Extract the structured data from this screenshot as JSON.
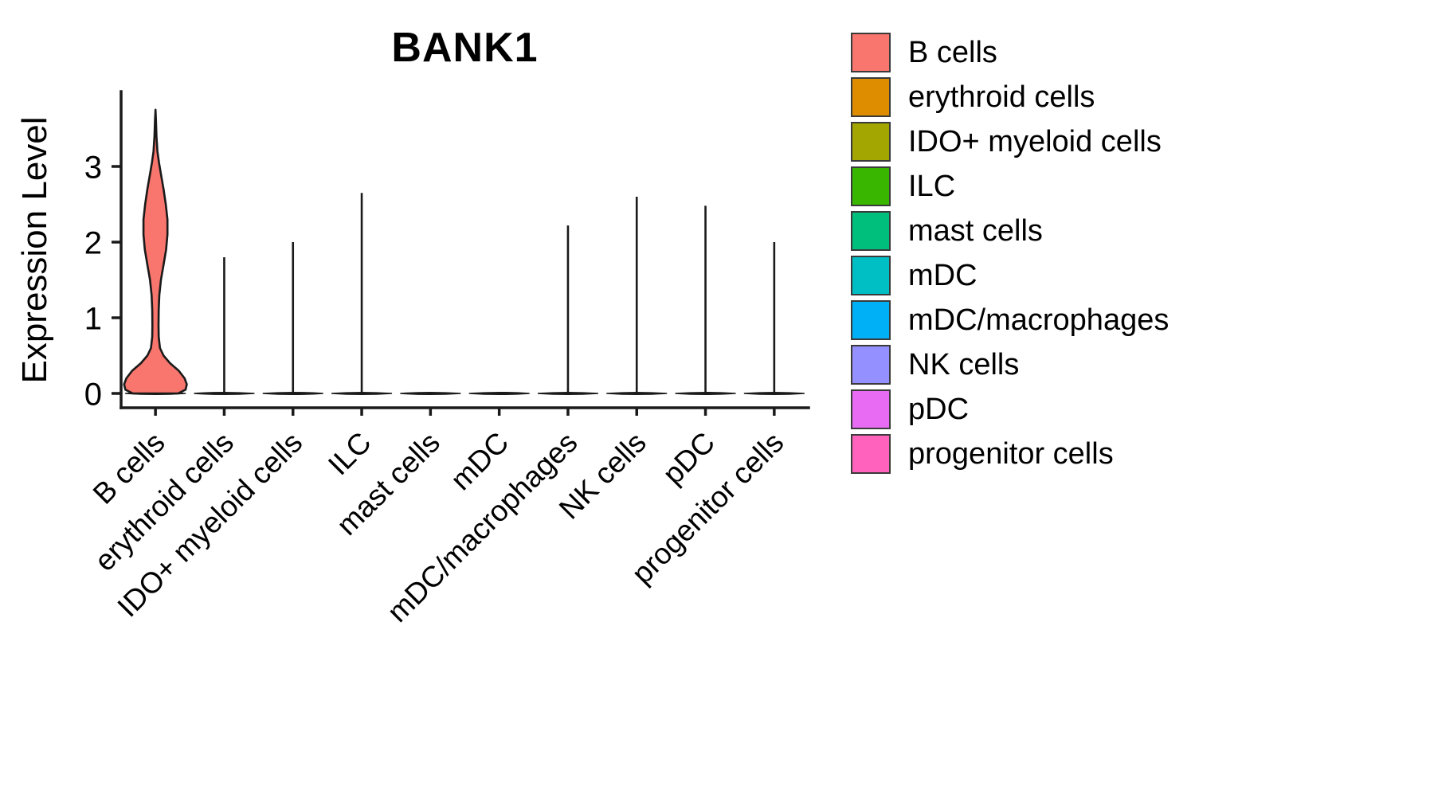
{
  "chart_data": {
    "type": "violin",
    "title": "BANK1",
    "xlabel": "",
    "ylabel": "Expression Level",
    "y_ticks": [
      0,
      1,
      2,
      3
    ],
    "ylim": [
      0,
      3.9
    ],
    "grid": false,
    "legend_position": "right",
    "categories": [
      "B cells",
      "erythroid cells",
      "IDO+ myeloid cells",
      "ILC",
      "mast cells",
      "mDC",
      "mDC/macrophages",
      "NK cells",
      "pDC",
      "progenitor cells"
    ],
    "series": [
      {
        "name": "B cells",
        "color": "#F8766D",
        "max_expression": 3.75,
        "density_profile": [
          [
            0.0,
            0.7
          ],
          [
            0.05,
            0.93
          ],
          [
            0.12,
            0.97
          ],
          [
            0.2,
            0.9
          ],
          [
            0.3,
            0.72
          ],
          [
            0.4,
            0.45
          ],
          [
            0.5,
            0.25
          ],
          [
            0.6,
            0.14
          ],
          [
            0.75,
            0.1
          ],
          [
            0.9,
            0.095
          ],
          [
            1.1,
            0.1
          ],
          [
            1.3,
            0.12
          ],
          [
            1.5,
            0.17
          ],
          [
            1.7,
            0.25
          ],
          [
            1.9,
            0.33
          ],
          [
            2.1,
            0.37
          ],
          [
            2.3,
            0.37
          ],
          [
            2.5,
            0.32
          ],
          [
            2.7,
            0.25
          ],
          [
            2.9,
            0.17
          ],
          [
            3.05,
            0.11
          ],
          [
            3.2,
            0.06
          ],
          [
            3.4,
            0.03
          ],
          [
            3.6,
            0.015
          ],
          [
            3.75,
            0.0
          ]
        ]
      },
      {
        "name": "erythroid cells",
        "color": "#DE8C00",
        "max_expression": 1.8
      },
      {
        "name": "IDO+ myeloid cells",
        "color": "#A3A500",
        "max_expression": 2.0
      },
      {
        "name": "ILC",
        "color": "#39B600",
        "max_expression": 2.65
      },
      {
        "name": "mast cells",
        "color": "#00BF7D",
        "max_expression": 0
      },
      {
        "name": "mDC",
        "color": "#00BFC4",
        "max_expression": 0
      },
      {
        "name": "mDC/macrophages",
        "color": "#00B0F6",
        "max_expression": 2.22
      },
      {
        "name": "NK cells",
        "color": "#9590FF",
        "max_expression": 2.6
      },
      {
        "name": "pDC",
        "color": "#E76BF3",
        "max_expression": 2.48
      },
      {
        "name": "progenitor cells",
        "color": "#FF62BC",
        "max_expression": 2.0
      }
    ]
  }
}
